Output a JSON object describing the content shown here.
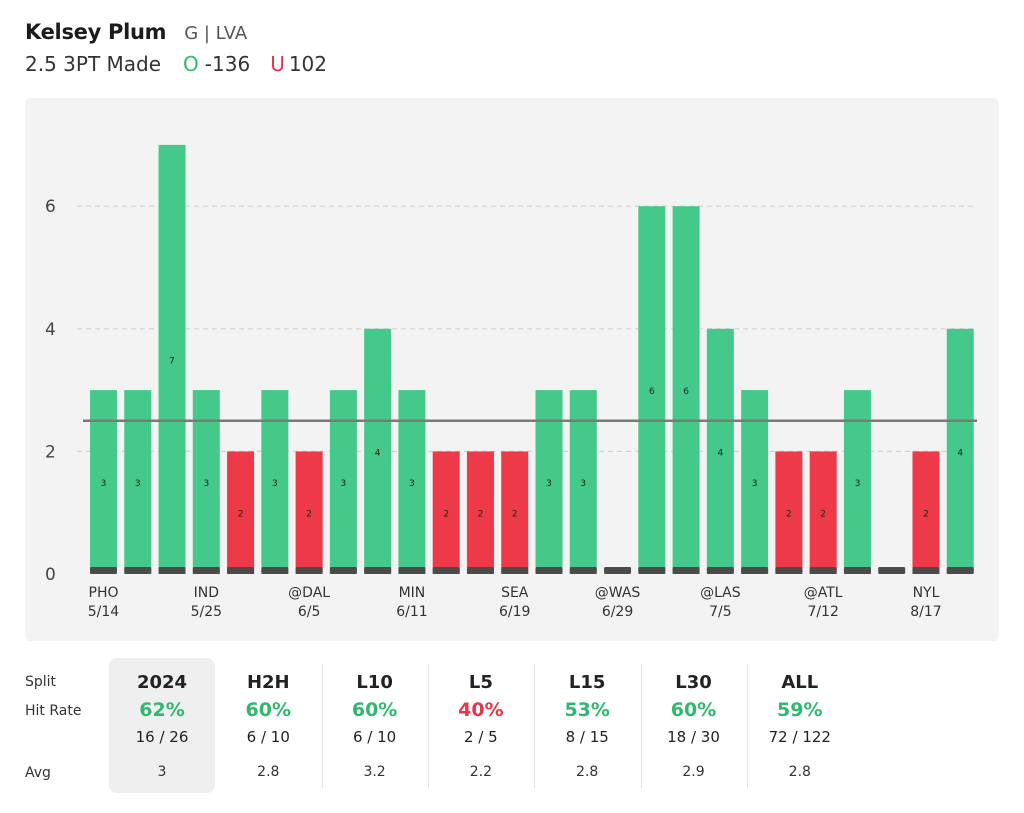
{
  "header": {
    "player_name": "Kelsey Plum",
    "player_meta": "G | LVA",
    "prop_line": "2.5 3PT Made",
    "over_label": "O",
    "over_odds": "-136",
    "under_label": "U",
    "under_odds": "102"
  },
  "chart_data": {
    "type": "bar",
    "line": 2.5,
    "ylim": [
      0,
      7.4
    ],
    "yticks": [
      0,
      2,
      4,
      6
    ],
    "grid": true,
    "values": [
      3,
      3,
      7,
      3,
      2,
      3,
      2,
      3,
      4,
      3,
      2,
      2,
      2,
      3,
      3,
      0,
      6,
      6,
      4,
      3,
      2,
      2,
      3,
      0,
      2,
      4
    ],
    "x_labels": [
      {
        "index": 0,
        "team": "PHO",
        "date": "5/14"
      },
      {
        "index": 3,
        "team": "IND",
        "date": "5/25"
      },
      {
        "index": 6,
        "team": "@DAL",
        "date": "6/5"
      },
      {
        "index": 9,
        "team": "MIN",
        "date": "6/11"
      },
      {
        "index": 12,
        "team": "SEA",
        "date": "6/19"
      },
      {
        "index": 15,
        "team": "@WAS",
        "date": "6/29"
      },
      {
        "index": 18,
        "team": "@LAS",
        "date": "7/5"
      },
      {
        "index": 21,
        "team": "@ATL",
        "date": "7/12"
      },
      {
        "index": 24,
        "team": "NYL",
        "date": "8/17"
      }
    ],
    "colors": {
      "over": "#45c98a",
      "under": "#ee3a48",
      "base": "#4b4b4b",
      "line": "#7a7a7a",
      "grid": "#d2d2d2"
    }
  },
  "stats": {
    "row_labels": {
      "split": "Split",
      "hit_rate": "Hit Rate",
      "avg": "Avg"
    },
    "columns": [
      {
        "split": "2024",
        "hit_rate": "62%",
        "record": "16 / 26",
        "avg": "3",
        "color": "#2fb86e"
      },
      {
        "split": "H2H",
        "hit_rate": "60%",
        "record": "6 / 10",
        "avg": "2.8",
        "color": "#2fb86e"
      },
      {
        "split": "L10",
        "hit_rate": "60%",
        "record": "6 / 10",
        "avg": "3.2",
        "color": "#2fb86e"
      },
      {
        "split": "L5",
        "hit_rate": "40%",
        "record": "2 / 5",
        "avg": "2.2",
        "color": "#e5364a"
      },
      {
        "split": "L15",
        "hit_rate": "53%",
        "record": "8 / 15",
        "avg": "2.8",
        "color": "#2fb86e"
      },
      {
        "split": "L30",
        "hit_rate": "60%",
        "record": "18 / 30",
        "avg": "2.9",
        "color": "#2fb86e"
      },
      {
        "split": "ALL",
        "hit_rate": "59%",
        "record": "72 / 122",
        "avg": "2.8",
        "color": "#2fb86e"
      }
    ]
  }
}
